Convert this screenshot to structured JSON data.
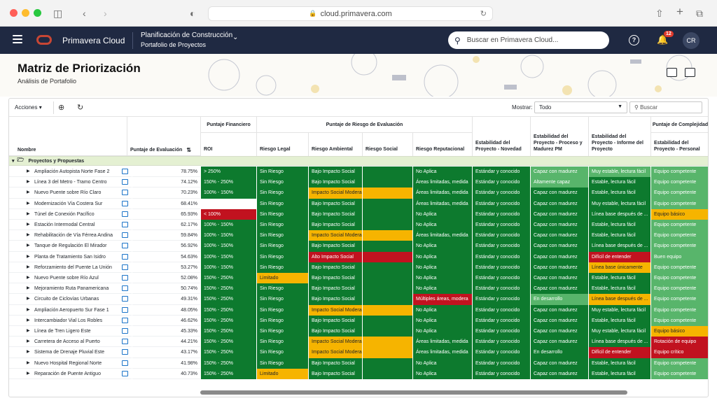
{
  "browser": {
    "url": "cloud.primavera.com"
  },
  "header": {
    "app_name": "Primavera Cloud",
    "context_title": "Planificación de Construcción",
    "context_subtitle": "Portafolio de Proyectos",
    "search_placeholder": "Buscar en Primavera Cloud...",
    "notifications": "12",
    "avatar": "CR"
  },
  "page": {
    "title": "Matriz de Priorización",
    "subtitle": "Análisis de Portafolio"
  },
  "toolbar": {
    "actions": "Acciones",
    "show_label": "Mostrar:",
    "show_value": "Todo",
    "search_placeholder": "Buscar"
  },
  "groups": {
    "financial": "Puntaje Financiero",
    "risk": "Puntaje de Riesgo de Evaluación",
    "complexity": "Puntaje de Complejidad"
  },
  "columns": {
    "name": "Nombre",
    "score": "Puntaje de Evaluación",
    "roi": "ROI",
    "legal": "Riesgo Legal",
    "environmental": "Riesgo Ambiental",
    "social": "Riesgo Social",
    "reputational": "Riesgo Reputacional",
    "novelty": "Estabilidad del Proyecto - Novedad",
    "process": "Estabilidad del Proyecto - Proceso y Madurez PM",
    "report": "Estabilidad del Proyecto - Informe del Proyecto",
    "personnel": "Estabilidad del Proyecto - Personal"
  },
  "group_row": "Proyectos y Propuestas",
  "colors": {
    "dark_green": "#0d7a2e",
    "light_green": "#58b56b",
    "yellow": "#f6b400",
    "red": "#c1121f",
    "header_navy": "#1f2942"
  },
  "rows": [
    {
      "name": "Ampliación Autopista Norte Fase 2",
      "score": "78.75%",
      "roi": [
        "> 250%",
        "dg"
      ],
      "legal": [
        "Sin Riesgo",
        "dg"
      ],
      "env": [
        "Bajo Impacto Social",
        "dg"
      ],
      "rep": [
        "No Aplica",
        "dg"
      ],
      "nov": [
        "Estándar y conocido",
        "dg"
      ],
      "proc": [
        "Capaz con madurez",
        "lg"
      ],
      "rep2": [
        "Muy estable, lectura fácil",
        "lg"
      ],
      "pers": [
        "Equipo competente",
        "lg"
      ]
    },
    {
      "name": "Línea 3 del Metro - Tramo Centro",
      "score": "74.12%",
      "roi": [
        "150% - 250%",
        "dg"
      ],
      "legal": [
        "Sin Riesgo",
        "dg"
      ],
      "env": [
        "Bajo Impacto Social",
        "dg"
      ],
      "rep": [
        "Áreas limitadas, medida",
        "dg"
      ],
      "nov": [
        "Estándar y conocido",
        "dg"
      ],
      "proc": [
        "Altamente capaz",
        "lg"
      ],
      "rep2": [
        "Estable, lectura fácil",
        "dg"
      ],
      "pers": [
        "Equipo competente",
        "lg"
      ]
    },
    {
      "name": "Nuevo Puente sobre Río Claro",
      "score": "70.23%",
      "roi": [
        "100% - 150%",
        "dg"
      ],
      "legal": [
        "Sin Riesgo",
        "dg"
      ],
      "env": [
        "Impacto Social Moderado",
        "y"
      ],
      "rep": [
        "Áreas limitadas, medida",
        "dg"
      ],
      "nov": [
        "Estándar y conocido",
        "dg"
      ],
      "proc": [
        "Capaz con madurez",
        "dg"
      ],
      "rep2": [
        "Estable, lectura fácil",
        "dg"
      ],
      "pers": [
        "Equipo competente",
        "lg"
      ]
    },
    {
      "name": "Modernización Vía Costera Sur",
      "score": "68.41%",
      "roi": [
        "",
        "w"
      ],
      "legal": [
        "Sin Riesgo",
        "dg"
      ],
      "env": [
        "Bajo Impacto Social",
        "dg"
      ],
      "rep": [
        "Áreas limitadas, medida",
        "dg"
      ],
      "nov": [
        "Estándar y conocido",
        "dg"
      ],
      "proc": [
        "Capaz con madurez",
        "dg"
      ],
      "rep2": [
        "Muy estable, lectura fácil",
        "dg"
      ],
      "pers": [
        "Equipo competente",
        "lg"
      ]
    },
    {
      "name": "Túnel de Conexión Pacífico",
      "score": "65.93%",
      "roi": [
        "< 100%",
        "r"
      ],
      "legal": [
        "Sin Riesgo",
        "dg"
      ],
      "env": [
        "Bajo Impacto Social",
        "dg"
      ],
      "rep": [
        "No Aplica",
        "dg"
      ],
      "nov": [
        "Estándar y conocido",
        "dg"
      ],
      "proc": [
        "Capaz con madurez",
        "dg"
      ],
      "rep2": [
        "Línea base después de ...",
        "dg"
      ],
      "pers": [
        "Equipo básico",
        "y"
      ]
    },
    {
      "name": "Estación Intermodal Central",
      "score": "62.17%",
      "roi": [
        "100% - 150%",
        "dg"
      ],
      "legal": [
        "Sin Riesgo",
        "dg"
      ],
      "env": [
        "Bajo Impacto Social",
        "dg"
      ],
      "rep": [
        "No Aplica",
        "dg"
      ],
      "nov": [
        "Estándar y conocido",
        "dg"
      ],
      "proc": [
        "Capaz con madurez",
        "dg"
      ],
      "rep2": [
        "Estable, lectura fácil",
        "dg"
      ],
      "pers": [
        "Equipo competente",
        "lg"
      ]
    },
    {
      "name": "Rehabilitación de Vía Férrea Andina",
      "score": "59.84%",
      "roi": [
        "100% - 150%",
        "dg"
      ],
      "legal": [
        "Sin Riesgo",
        "dg"
      ],
      "env": [
        "Impacto Social Moderado",
        "y"
      ],
      "rep": [
        "Áreas limitadas, medida",
        "dg"
      ],
      "nov": [
        "Estándar y conocido",
        "dg"
      ],
      "proc": [
        "Capaz con madurez",
        "dg"
      ],
      "rep2": [
        "Estable, lectura fácil",
        "dg"
      ],
      "pers": [
        "Equipo competente",
        "lg"
      ]
    },
    {
      "name": "Tanque de Regulación El Mirador",
      "score": "56.92%",
      "roi": [
        "100% - 150%",
        "dg"
      ],
      "legal": [
        "Sin Riesgo",
        "dg"
      ],
      "env": [
        "Bajo Impacto Social",
        "dg"
      ],
      "rep": [
        "No Aplica",
        "dg"
      ],
      "nov": [
        "Estándar y conocido",
        "dg"
      ],
      "proc": [
        "Capaz con madurez",
        "dg"
      ],
      "rep2": [
        "Línea base después de ...",
        "dg"
      ],
      "pers": [
        "Equipo competente",
        "lg"
      ]
    },
    {
      "name": "Planta de Tratamiento San Isidro",
      "score": "54.63%",
      "roi": [
        "100% - 150%",
        "dg"
      ],
      "legal": [
        "Sin Riesgo",
        "dg"
      ],
      "env": [
        "Alto Impacto Social",
        "r"
      ],
      "rep": [
        "No Aplica",
        "dg"
      ],
      "nov": [
        "Estándar y conocido",
        "dg"
      ],
      "proc": [
        "Capaz con madurez",
        "dg"
      ],
      "rep2": [
        "Difícil de entender",
        "r"
      ],
      "pers": [
        "Buen equipo",
        "lg"
      ]
    },
    {
      "name": "Reforzamiento del Puente La Unión",
      "score": "53.27%",
      "roi": [
        "100% - 150%",
        "dg"
      ],
      "legal": [
        "Sin Riesgo",
        "dg"
      ],
      "env": [
        "Bajo Impacto Social",
        "dg"
      ],
      "rep": [
        "No Aplica",
        "dg"
      ],
      "nov": [
        "Estándar y conocido",
        "dg"
      ],
      "proc": [
        "Capaz con madurez",
        "dg"
      ],
      "rep2": [
        "Línea base únicamente",
        "y"
      ],
      "pers": [
        "Equipo competente",
        "lg"
      ]
    },
    {
      "name": "Nuevo Puente sobre Río Azul",
      "score": "52.08%",
      "roi": [
        "150% - 250%",
        "dg"
      ],
      "legal": [
        "Limitado",
        "y"
      ],
      "env": [
        "Bajo Impacto Social",
        "dg"
      ],
      "rep": [
        "No Aplica",
        "dg"
      ],
      "nov": [
        "Estándar y conocido",
        "dg"
      ],
      "proc": [
        "Capaz con madurez",
        "dg"
      ],
      "rep2": [
        "Estable, lectura fácil",
        "dg"
      ],
      "pers": [
        "Equipo competente",
        "lg"
      ]
    },
    {
      "name": "Mejoramiento Ruta Panamericana",
      "score": "50.74%",
      "roi": [
        "150% - 250%",
        "dg"
      ],
      "legal": [
        "Sin Riesgo",
        "dg"
      ],
      "env": [
        "Bajo Impacto Social",
        "dg"
      ],
      "rep": [
        "No Aplica",
        "dg"
      ],
      "nov": [
        "Estándar y conocido",
        "dg"
      ],
      "proc": [
        "Capaz con madurez",
        "dg"
      ],
      "rep2": [
        "Estable, lectura fácil",
        "dg"
      ],
      "pers": [
        "Equipo competente",
        "lg"
      ]
    },
    {
      "name": "Circuito de Ciclovías Urbanas",
      "score": "49.31%",
      "roi": [
        "150% - 250%",
        "dg"
      ],
      "legal": [
        "Sin Riesgo",
        "dg"
      ],
      "env": [
        "Bajo Impacto Social",
        "dg"
      ],
      "rep": [
        "Múltiples áreas, modera",
        "r"
      ],
      "nov": [
        "Estándar y conocido",
        "dg"
      ],
      "proc": [
        "En desarrollo",
        "lg"
      ],
      "rep2": [
        "Línea base después de ...",
        "y"
      ],
      "pers": [
        "Equipo competente",
        "lg"
      ]
    },
    {
      "name": "Ampliación Aeropuerto Sur Fase 1",
      "score": "48.05%",
      "roi": [
        "150% - 250%",
        "dg"
      ],
      "legal": [
        "Sin Riesgo",
        "dg"
      ],
      "env": [
        "Impacto Social Moderado",
        "y"
      ],
      "rep": [
        "No Aplica",
        "dg"
      ],
      "nov": [
        "Estándar y conocido",
        "dg"
      ],
      "proc": [
        "Capaz con madurez",
        "dg"
      ],
      "rep2": [
        "Muy estable, lectura fácil",
        "dg"
      ],
      "pers": [
        "Equipo competente",
        "lg"
      ]
    },
    {
      "name": "Intercambiador Vial Los Robles",
      "score": "46.62%",
      "roi": [
        "150% - 250%",
        "dg"
      ],
      "legal": [
        "Sin Riesgo",
        "dg"
      ],
      "env": [
        "Bajo Impacto Social",
        "dg"
      ],
      "rep": [
        "No Aplica",
        "dg"
      ],
      "nov": [
        "Estándar y conocido",
        "dg"
      ],
      "proc": [
        "Capaz con madurez",
        "dg"
      ],
      "rep2": [
        "Estable, lectura fácil",
        "dg"
      ],
      "pers": [
        "Equipo competente",
        "lg"
      ]
    },
    {
      "name": "Línea de Tren Ligero Este",
      "score": "45.33%",
      "roi": [
        "150% - 250%",
        "dg"
      ],
      "legal": [
        "Sin Riesgo",
        "dg"
      ],
      "env": [
        "Bajo Impacto Social",
        "dg"
      ],
      "rep": [
        "No Aplica",
        "dg"
      ],
      "nov": [
        "Estándar y conocido",
        "dg"
      ],
      "proc": [
        "Capaz con madurez",
        "dg"
      ],
      "rep2": [
        "Muy estable, lectura fácil",
        "dg"
      ],
      "pers": [
        "Equipo básico",
        "y"
      ]
    },
    {
      "name": "Carretera de Acceso al Puerto",
      "score": "44.21%",
      "roi": [
        "150% - 250%",
        "dg"
      ],
      "legal": [
        "Sin Riesgo",
        "dg"
      ],
      "env": [
        "Impacto Social Moderado",
        "y"
      ],
      "rep": [
        "Áreas limitadas, medida",
        "dg"
      ],
      "nov": [
        "Estándar y conocido",
        "dg"
      ],
      "proc": [
        "Capaz con madurez",
        "dg"
      ],
      "rep2": [
        "Línea base después de ...",
        "dg"
      ],
      "pers": [
        "Rotación de equipo",
        "r"
      ]
    },
    {
      "name": "Sistema de Drenaje Pluvial Este",
      "score": "43.17%",
      "roi": [
        "150% - 250%",
        "dg"
      ],
      "legal": [
        "Sin Riesgo",
        "dg"
      ],
      "env": [
        "Impacto Social Moderado",
        "y"
      ],
      "rep": [
        "Áreas limitadas, medida",
        "dg"
      ],
      "nov": [
        "Estándar y conocido",
        "dg"
      ],
      "proc": [
        "En desarrollo",
        "dg"
      ],
      "rep2": [
        "Difícil de entender",
        "r"
      ],
      "pers": [
        "Equipo crítico",
        "r"
      ]
    },
    {
      "name": "Nuevo Hospital Regional Norte",
      "score": "41.98%",
      "roi": [
        "150% - 250%",
        "dg"
      ],
      "legal": [
        "Sin Riesgo",
        "dg"
      ],
      "env": [
        "Bajo Impacto Social",
        "dg"
      ],
      "rep": [
        "No Aplica",
        "dg"
      ],
      "nov": [
        "Estándar y conocido",
        "dg"
      ],
      "proc": [
        "Capaz con madurez",
        "dg"
      ],
      "rep2": [
        "Estable, lectura fácil",
        "dg"
      ],
      "pers": [
        "Equipo competente",
        "lg"
      ]
    },
    {
      "name": "Reparación de Puente Antiguo",
      "score": "40.73%",
      "roi": [
        "150% - 250%",
        "dg"
      ],
      "legal": [
        "Limitado",
        "y"
      ],
      "env": [
        "Bajo Impacto Social",
        "dg"
      ],
      "rep": [
        "No Aplica",
        "dg"
      ],
      "nov": [
        "Estándar y conocido",
        "dg"
      ],
      "proc": [
        "Capaz con madurez",
        "dg"
      ],
      "rep2": [
        "Estable, lectura fácil",
        "dg"
      ],
      "pers": [
        "Equipo competente",
        "lg"
      ]
    }
  ]
}
